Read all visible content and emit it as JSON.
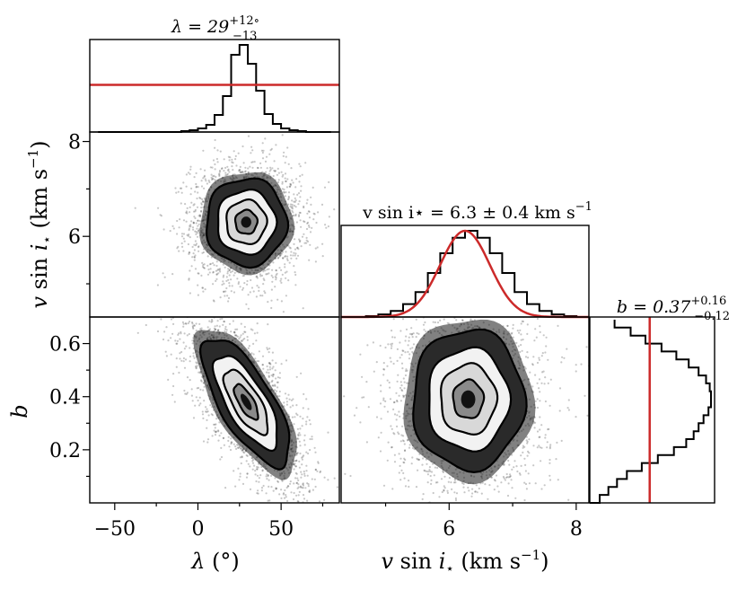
{
  "chart_data": [
    {
      "type": "histogram",
      "panel": "lambda-marginal",
      "title": "λ = 29^{+12°}_{−13}",
      "title_parts": {
        "lhs": "λ = 29",
        "sup": "+12∘",
        "sub": "−13"
      },
      "x": [
        -60,
        -55,
        -50,
        -45,
        -40,
        -35,
        -30,
        -25,
        -20,
        -15,
        -10,
        -5,
        0,
        5,
        10,
        15,
        20,
        25,
        30,
        35,
        40,
        45,
        50,
        55,
        60,
        65,
        70,
        75,
        80
      ],
      "counts": [
        0,
        0,
        0,
        0,
        0,
        0,
        0,
        0,
        0,
        0,
        1,
        2,
        4,
        8,
        19,
        40,
        86,
        97,
        76,
        46,
        20,
        9,
        4,
        2,
        1,
        0,
        0,
        0
      ],
      "reference_line": {
        "orientation": "horizontal",
        "level_fraction": 0.51,
        "color": "#cc2a2a"
      },
      "xlim": [
        -65,
        85
      ]
    },
    {
      "type": "histogram",
      "panel": "vsini-marginal",
      "title": "v sin i⋆ = 6.3 ± 0.4 km s^{−1}",
      "title_parts": {
        "lhs": "v sin i⋆ = 6.3 ± 0.4 km s",
        "sup": "−1"
      },
      "x": [
        4.3,
        4.5,
        4.7,
        4.9,
        5.1,
        5.3,
        5.5,
        5.7,
        5.9,
        6.1,
        6.3,
        6.5,
        6.7,
        6.9,
        7.1,
        7.3,
        7.5,
        7.7,
        7.9,
        8.1,
        8.3
      ],
      "counts": [
        0,
        0,
        1,
        3,
        7,
        15,
        29,
        51,
        74,
        92,
        100,
        92,
        74,
        51,
        29,
        15,
        7,
        3,
        1,
        0
      ],
      "gaussian": {
        "mean": 6.3,
        "sigma": 0.4,
        "color": "#cc2a2a"
      },
      "xlim": [
        4.3,
        8.3
      ]
    },
    {
      "type": "histogram",
      "panel": "b-marginal",
      "orientation": "horizontal",
      "title": "b = 0.37^{+0.16}_{−0.12}",
      "title_parts": {
        "lhs": "b = 0.37",
        "sup": "+0.16",
        "sub": "−0.12"
      },
      "bins": [
        0.0,
        0.03,
        0.06,
        0.09,
        0.12,
        0.15,
        0.18,
        0.21,
        0.24,
        0.27,
        0.3,
        0.33,
        0.36,
        0.39,
        0.42,
        0.45,
        0.48,
        0.51,
        0.54,
        0.57,
        0.6,
        0.63,
        0.66,
        0.69
      ],
      "counts": [
        8,
        15,
        22,
        30,
        42,
        55,
        68,
        78,
        84,
        88,
        92,
        96,
        98,
        98,
        97,
        94,
        88,
        80,
        70,
        58,
        45,
        33,
        20
      ],
      "reference_line": {
        "orientation": "vertical",
        "level_fraction": 0.48,
        "color": "#cc2a2a"
      },
      "ylim": [
        0.0,
        0.7
      ]
    },
    {
      "type": "scatter-density",
      "panel": "vsini-vs-lambda",
      "xlim": [
        -65,
        85
      ],
      "ylim": [
        4.3,
        8.2
      ],
      "center": [
        29,
        6.3
      ],
      "spread": [
        11,
        0.42
      ],
      "correlation": 0.0,
      "contour_levels": [
        "0.5σ",
        "1σ",
        "1.5σ",
        "2σ"
      ]
    },
    {
      "type": "scatter-density",
      "panel": "b-vs-lambda",
      "xlim": [
        -65,
        85
      ],
      "ylim": [
        0.0,
        0.7
      ],
      "center": [
        29,
        0.38
      ],
      "spread": [
        12,
        0.11
      ],
      "correlation": -0.72,
      "contour_levels": [
        "0.5σ",
        "1σ",
        "1.5σ",
        "2σ"
      ]
    },
    {
      "type": "scatter-density",
      "panel": "b-vs-vsini",
      "xlim": [
        4.3,
        8.2
      ],
      "ylim": [
        0.0,
        0.7
      ],
      "center": [
        6.3,
        0.39
      ],
      "spread": [
        0.4,
        0.12
      ],
      "correlation": 0.0,
      "contour_levels": [
        "0.5σ",
        "1σ",
        "1.5σ",
        "2σ"
      ]
    }
  ],
  "axes": {
    "lambda": {
      "label": "λ (°)",
      "label_parts": [
        "λ",
        " (",
        "°",
        ")"
      ],
      "ticks": [
        "−50",
        "0",
        "50"
      ],
      "tick_values": [
        -50,
        0,
        50
      ]
    },
    "vsini_x": {
      "label": "v sin i⋆ (km s−1)",
      "label_parts": [
        "v",
        " sin ",
        "i",
        "⋆",
        " (km s",
        "−1",
        ")"
      ],
      "ticks": [
        "6",
        "8"
      ],
      "tick_values": [
        6,
        8
      ]
    },
    "vsini_y": {
      "label": "v sin i⋆ (km s−1)",
      "label_parts": [
        "v",
        " sin ",
        "i",
        "⋆",
        " (km s",
        "−1",
        ")"
      ],
      "ticks": [
        "6",
        "8"
      ],
      "tick_values": [
        6,
        8
      ]
    },
    "b": {
      "label": "b",
      "ticks": [
        "0.2",
        "0.4",
        "0.6"
      ],
      "tick_values": [
        0.2,
        0.4,
        0.6
      ]
    }
  },
  "colors": {
    "accent": "#cc2a2a",
    "ink": "#000000"
  }
}
